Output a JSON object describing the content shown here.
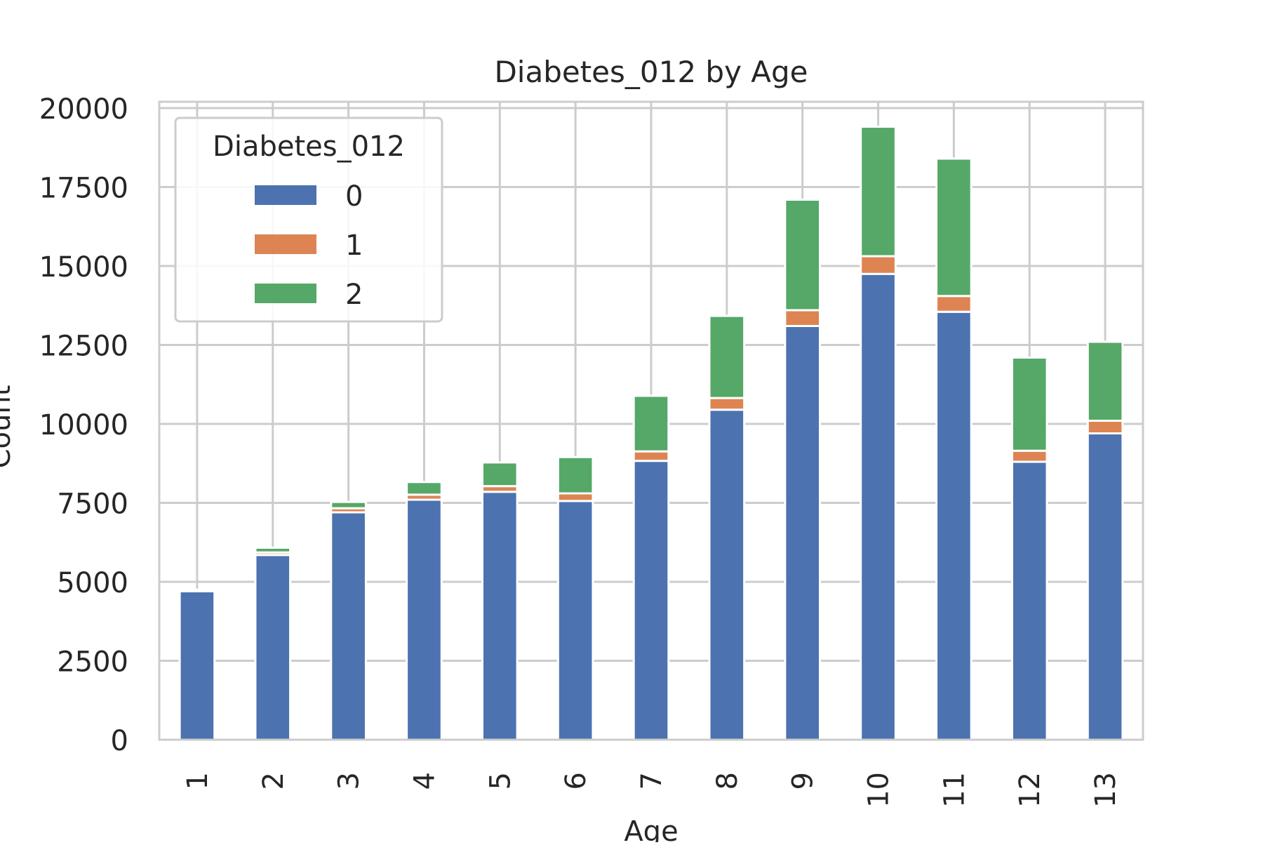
{
  "chart_data": {
    "type": "bar",
    "stacked": true,
    "title": "Diabetes_012 by Age",
    "xlabel": "Age",
    "ylabel": "Count",
    "categories": [
      "1",
      "2",
      "3",
      "4",
      "5",
      "6",
      "7",
      "8",
      "9",
      "10",
      "11",
      "12",
      "13"
    ],
    "series": [
      {
        "name": "0",
        "color": "#4c72b0",
        "values": [
          4700,
          5850,
          7200,
          7600,
          7850,
          7560,
          8830,
          10450,
          13100,
          14750,
          13550,
          8800,
          9700
        ]
      },
      {
        "name": "1",
        "color": "#dd8452",
        "values": [
          50,
          80,
          130,
          160,
          180,
          240,
          300,
          370,
          500,
          560,
          500,
          350,
          400
        ]
      },
      {
        "name": "2",
        "color": "#55a868",
        "values": [
          0,
          150,
          200,
          400,
          750,
          1150,
          1760,
          2600,
          3500,
          4100,
          4350,
          2950,
          2500
        ]
      }
    ],
    "ylim": [
      0,
      20200
    ],
    "yticks": [
      0,
      2500,
      5000,
      7500,
      10000,
      12500,
      15000,
      17500,
      20000
    ],
    "grid": true,
    "legend": {
      "title": "Diabetes_012",
      "position": "top-left"
    }
  }
}
